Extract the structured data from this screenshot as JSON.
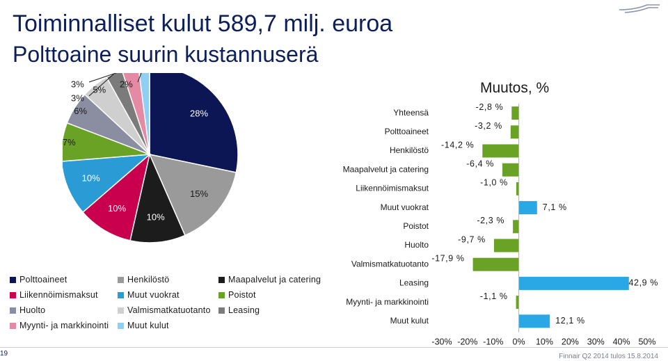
{
  "header": {
    "title": "Toiminnalliset kulut 589,7 milj. euroa",
    "subtitle": "Polttoaine suurin kustannuserä"
  },
  "footer": {
    "page_number": "19",
    "source": "Finnair Q2 2014 tulos 15.8.2014"
  },
  "chart_data": [
    {
      "type": "pie",
      "title": "",
      "slices": [
        {
          "name": "Polttoaineet",
          "value": 28,
          "label": "28%",
          "color": "#0d1654"
        },
        {
          "name": "Henkilöstö",
          "value": 15,
          "label": "15%",
          "color": "#9a9a9a"
        },
        {
          "name": "Maapalvelut ja catering",
          "value": 10,
          "label": "10%",
          "color": "#1c1c1c"
        },
        {
          "name": "Liikennöimismaksut",
          "value": 10,
          "label": "10%",
          "color": "#c8004e"
        },
        {
          "name": "Muut vuokrat",
          "value": 10,
          "label": "10%",
          "color": "#2a9bd4"
        },
        {
          "name": "Poistot",
          "value": 7,
          "label": "7%",
          "color": "#6aa225"
        },
        {
          "name": "Huolto",
          "value": 6,
          "label": "6%",
          "color": "#8b8da0"
        },
        {
          "name": "Valmismatkatuotanto",
          "value": 5,
          "label": "5%",
          "color": "#cfcfcf"
        },
        {
          "name": "Leasing",
          "value": 3,
          "label": "3%",
          "color": "#7b7b7b"
        },
        {
          "name": "Myynti- ja markkinointi",
          "value": 3,
          "label": "3%",
          "color": "#e58aa5"
        },
        {
          "name": "Muut kulut",
          "value": 2,
          "label": "2%",
          "color": "#8fd0f2"
        }
      ]
    },
    {
      "type": "bar",
      "orientation": "horizontal",
      "title": "Muutos, %",
      "categories": [
        "Yhteensä",
        "Polttoaineet",
        "Henkilöstö",
        "Maapalvelut ja catering",
        "Liikennöimismaksut",
        "Muut vuokrat",
        "Poistot",
        "Huolto",
        "Valmismatkatuotanto",
        "Leasing",
        "Myynti- ja markkinointi",
        "Muut kulut"
      ],
      "values": [
        -2.8,
        -3.2,
        -14.2,
        -6.4,
        -1.0,
        7.1,
        -2.3,
        -9.7,
        -17.9,
        42.9,
        -1.1,
        12.1
      ],
      "value_labels": [
        "-2,8 %",
        "-3,2 %",
        "-14,2 %",
        "-6,4 %",
        "-1,0 %",
        "7,1 %",
        "-2,3 %",
        "-9,7 %",
        "-17,9 %",
        "42,9 %",
        "-1,1 %",
        "12,1 %"
      ],
      "colors": [
        "#6aa225",
        "#6aa225",
        "#6aa225",
        "#6aa225",
        "#6aa225",
        "#2aa8e6",
        "#6aa225",
        "#6aa225",
        "#6aa225",
        "#2aa8e6",
        "#6aa225",
        "#2aa8e6"
      ],
      "xlim": [
        -30,
        50
      ],
      "xticks": [
        -30,
        -20,
        -10,
        0,
        10,
        20,
        30,
        40,
        50
      ],
      "xtick_labels": [
        "-30%",
        "-20%",
        "-10%",
        "0%",
        "10%",
        "20%",
        "30%",
        "40%",
        "50%"
      ],
      "grid": false
    }
  ]
}
